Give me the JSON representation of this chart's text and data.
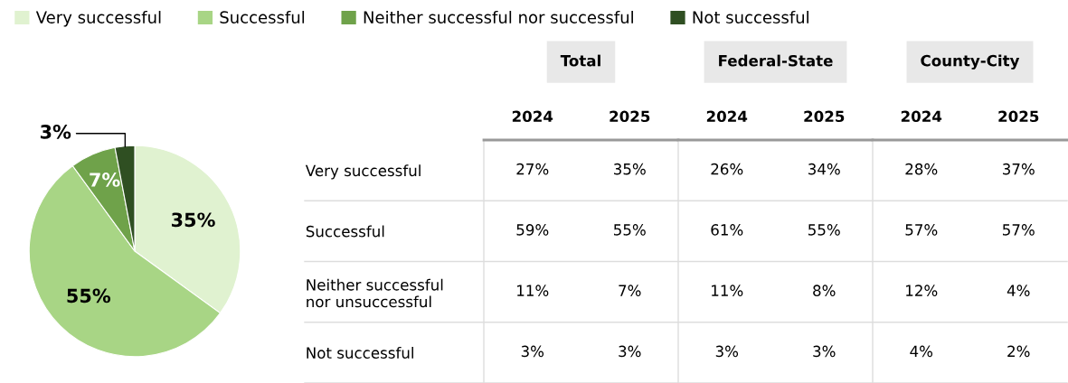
{
  "chart_data": [
    {
      "type": "pie",
      "categories": [
        "Very successful",
        "Successful",
        "Neither successful nor successful",
        "Not successful"
      ],
      "values": [
        35,
        55,
        7,
        3
      ],
      "colors": [
        "#e0f2d0",
        "#a8d585",
        "#6fa24a",
        "#2f4f22"
      ],
      "value_labels": [
        "35%",
        "55%",
        "7%",
        "3%"
      ],
      "legend": "top"
    },
    {
      "type": "other",
      "title": "Total",
      "categories": [
        "2024",
        "2025"
      ],
      "y_categories": [
        "Very successful",
        "Successful",
        "Neither successful\nnor unsuccessful",
        "Not successful"
      ],
      "cell_labels": [
        [
          "27%",
          "35%"
        ],
        [
          "59%",
          "55%"
        ],
        [
          "11%",
          "7%"
        ],
        [
          "3%",
          "3%"
        ]
      ]
    },
    {
      "type": "other",
      "title": "Federal-State",
      "categories": [
        "2024",
        "2025"
      ],
      "cell_labels": [
        [
          "26%",
          "34%"
        ],
        [
          "61%",
          "55%"
        ],
        [
          "11%",
          "8%"
        ],
        [
          "3%",
          "3%"
        ]
      ]
    },
    {
      "type": "other",
      "title": "County-City",
      "categories": [
        "2024",
        "2025"
      ],
      "cell_labels": [
        [
          "28%",
          "37%"
        ],
        [
          "57%",
          "57%"
        ],
        [
          "12%",
          "4%"
        ],
        [
          "4%",
          "2%"
        ]
      ]
    }
  ]
}
